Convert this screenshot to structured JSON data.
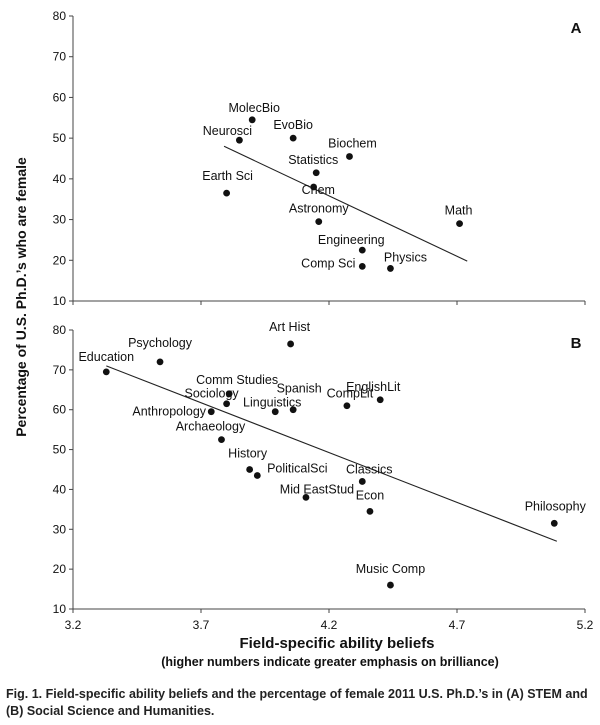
{
  "figure": {
    "ylabel": "Percentage of U.S. Ph.D.’s who are female",
    "xlabel": "Field-specific ability beliefs",
    "xlabel_sub": "(higher numbers indicate greater emphasis on brilliance)",
    "caption": "Fig. 1. Field-specific ability beliefs and the percentage of female 2011 U.S. Ph.D.’s in (A) STEM and (B) Social Science and Humanities."
  },
  "chart_data": [
    {
      "type": "scatter",
      "panel_label": "A",
      "xlim": [
        3.2,
        5.2
      ],
      "ylim": [
        10,
        80
      ],
      "yticks": [
        "10",
        "20",
        "30",
        "40",
        "50",
        "60",
        "70",
        "80"
      ],
      "grid": false,
      "trendline": [
        [
          3.79,
          48.0
        ],
        [
          4.74,
          19.8
        ]
      ],
      "points": [
        {
          "label": "MolecBio",
          "x": 3.9,
          "y": 54.5
        },
        {
          "label": "EvoBio",
          "x": 4.06,
          "y": 50.0
        },
        {
          "label": "Neurosci",
          "x": 3.85,
          "y": 49.5
        },
        {
          "label": "Biochem",
          "x": 4.28,
          "y": 45.5
        },
        {
          "label": "Statistics",
          "x": 4.15,
          "y": 41.5
        },
        {
          "label": "Chem",
          "x": 4.14,
          "y": 38.0
        },
        {
          "label": "Earth Sci",
          "x": 3.8,
          "y": 36.5
        },
        {
          "label": "Astronomy",
          "x": 4.16,
          "y": 29.5
        },
        {
          "label": "Math",
          "x": 4.71,
          "y": 29.0
        },
        {
          "label": "Engineering",
          "x": 4.33,
          "y": 22.5
        },
        {
          "label": "Comp Sci",
          "x": 4.33,
          "y": 18.5
        },
        {
          "label": "Physics",
          "x": 4.44,
          "y": 18.0
        }
      ]
    },
    {
      "type": "scatter",
      "panel_label": "B",
      "xlim": [
        3.2,
        5.2
      ],
      "ylim": [
        10,
        80
      ],
      "yticks": [
        "10",
        "20",
        "30",
        "40",
        "50",
        "60",
        "70",
        "80"
      ],
      "xticks": [
        "3.2",
        "3.7",
        "4.2",
        "4.7",
        "5.2"
      ],
      "grid": false,
      "trendline": [
        [
          3.33,
          71.0
        ],
        [
          5.09,
          27.0
        ]
      ],
      "points": [
        {
          "label": "Art Hist",
          "x": 4.05,
          "y": 76.5
        },
        {
          "label": "Psychology",
          "x": 3.54,
          "y": 72.0
        },
        {
          "label": "Education",
          "x": 3.33,
          "y": 69.5
        },
        {
          "label": "Comm Studies",
          "x": 3.81,
          "y": 64.0
        },
        {
          "label": "EnglishLit",
          "x": 4.4,
          "y": 62.5
        },
        {
          "label": "Sociology",
          "x": 3.8,
          "y": 61.5
        },
        {
          "label": "Spanish",
          "x": 4.06,
          "y": 60.0
        },
        {
          "label": "CompLit",
          "x": 4.27,
          "y": 61.0
        },
        {
          "label": "Linguistics",
          "x": 3.99,
          "y": 59.5
        },
        {
          "label": "Anthropology",
          "x": 3.74,
          "y": 59.5
        },
        {
          "label": "Archaeology",
          "x": 3.78,
          "y": 52.5
        },
        {
          "label": "History",
          "x": 3.89,
          "y": 45.0
        },
        {
          "label": "PoliticalSci",
          "x": 3.92,
          "y": 43.5
        },
        {
          "label": "Classics",
          "x": 4.33,
          "y": 42.0
        },
        {
          "label": "Mid EastStud",
          "x": 4.11,
          "y": 38.0
        },
        {
          "label": "Econ",
          "x": 4.36,
          "y": 34.5
        },
        {
          "label": "Philosophy",
          "x": 5.08,
          "y": 31.5
        },
        {
          "label": "Music Comp",
          "x": 4.44,
          "y": 16.0
        }
      ]
    }
  ]
}
